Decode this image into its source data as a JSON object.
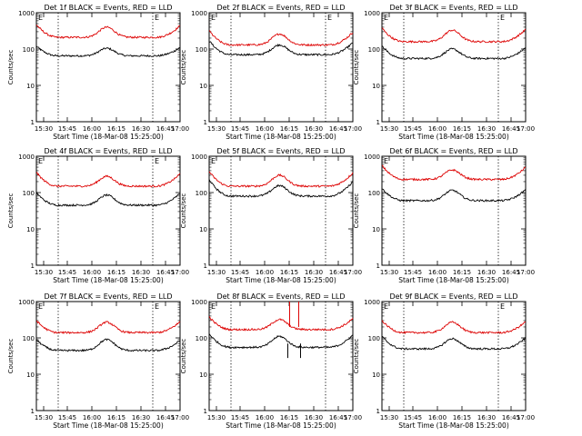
{
  "figure": {
    "ylabel": "Counts/sec",
    "xlabel": "Start Time (18-Mar-08 15:25:00)"
  },
  "chart_data": [
    {
      "type": "line",
      "title": "Det 1f BLACK = Events, RED = LLD",
      "xlabel": "Start Time (18-Mar-08 15:25:00)",
      "ylabel": "Counts/sec",
      "y_scale": "log",
      "ylim": [
        1,
        1000
      ],
      "x_ticks": [
        "15:30",
        "15:45",
        "16:00",
        "16:15",
        "16:30",
        "16:45",
        "17:00"
      ],
      "y_ticks": [
        "1",
        "10",
        "100",
        "1000"
      ],
      "markers": [
        "E",
        "E"
      ],
      "series": [
        {
          "name": "Events",
          "color": "#000000",
          "base": 65,
          "peak": 105,
          "start": 120,
          "end": 110
        },
        {
          "name": "LLD",
          "color": "#dd0000",
          "base": 210,
          "peak": 400,
          "start": 470,
          "end": 440
        }
      ]
    },
    {
      "type": "line",
      "title": "Det 2f BLACK = Events, RED = LLD",
      "xlabel": "Start Time (18-Mar-08 15:25:00)",
      "ylabel": "Counts/sec",
      "y_scale": "log",
      "ylim": [
        1,
        1000
      ],
      "x_ticks": [
        "15:30",
        "15:45",
        "16:00",
        "16:15",
        "16:30",
        "16:45",
        "17:00"
      ],
      "y_ticks": [
        "1",
        "10",
        "100",
        "1000"
      ],
      "markers": [
        "E",
        "E"
      ],
      "series": [
        {
          "name": "Events",
          "color": "#000000",
          "base": 70,
          "peak": 130,
          "start": 170,
          "end": 150
        },
        {
          "name": "LLD",
          "color": "#dd0000",
          "base": 130,
          "peak": 260,
          "start": 320,
          "end": 290
        }
      ]
    },
    {
      "type": "line",
      "title": "Det 3f BLACK = Events, RED = LLD",
      "xlabel": "Start Time (18-Mar-08 15:25:00)",
      "ylabel": "Counts/sec",
      "y_scale": "log",
      "ylim": [
        1,
        1000
      ],
      "x_ticks": [
        "15:30",
        "15:45",
        "16:00",
        "16:15",
        "16:30",
        "16:45",
        "17:00"
      ],
      "y_ticks": [
        "1",
        "10",
        "100",
        "1000"
      ],
      "markers": [
        "E",
        "E"
      ],
      "series": [
        {
          "name": "Events",
          "color": "#000000",
          "base": 55,
          "peak": 100,
          "start": 120,
          "end": 110
        },
        {
          "name": "LLD",
          "color": "#dd0000",
          "base": 160,
          "peak": 330,
          "start": 380,
          "end": 350
        }
      ]
    },
    {
      "type": "line",
      "title": "Det 4f BLACK = Events, RED = LLD",
      "xlabel": "Start Time (18-Mar-08 15:25:00)",
      "ylabel": "Counts/sec",
      "y_scale": "log",
      "ylim": [
        1,
        1000
      ],
      "x_ticks": [
        "15:30",
        "15:45",
        "16:00",
        "16:15",
        "16:30",
        "16:45",
        "17:00"
      ],
      "y_ticks": [
        "1",
        "10",
        "100",
        "1000"
      ],
      "markers": [
        "E",
        "E"
      ],
      "series": [
        {
          "name": "Events",
          "color": "#000000",
          "base": 45,
          "peak": 85,
          "start": 100,
          "end": 95
        },
        {
          "name": "LLD",
          "color": "#dd0000",
          "base": 150,
          "peak": 280,
          "start": 360,
          "end": 330
        }
      ]
    },
    {
      "type": "line",
      "title": "Det 5f BLACK = Events, RED = LLD",
      "xlabel": "Start Time (18-Mar-08 15:25:00)",
      "ylabel": "Counts/sec",
      "y_scale": "log",
      "ylim": [
        1,
        1000
      ],
      "x_ticks": [
        "15:30",
        "15:45",
        "16:00",
        "16:15",
        "16:30",
        "16:45",
        "17:00"
      ],
      "y_ticks": [
        "1",
        "10",
        "100",
        "1000"
      ],
      "markers": [
        "E"
      ],
      "series": [
        {
          "name": "Events",
          "color": "#000000",
          "base": 80,
          "peak": 155,
          "start": 230,
          "end": 200
        },
        {
          "name": "LLD",
          "color": "#dd0000",
          "base": 150,
          "peak": 300,
          "start": 380,
          "end": 350
        }
      ]
    },
    {
      "type": "line",
      "title": "Det 6f BLACK = Events, RED = LLD",
      "xlabel": "Start Time (18-Mar-08 15:25:00)",
      "ylabel": "Counts/sec",
      "y_scale": "log",
      "ylim": [
        1,
        1000
      ],
      "x_ticks": [
        "15:30",
        "15:45",
        "16:00",
        "16:15",
        "16:30",
        "16:45",
        "17:00"
      ],
      "y_ticks": [
        "1",
        "10",
        "100",
        "1000"
      ],
      "markers": [
        "E"
      ],
      "series": [
        {
          "name": "Events",
          "color": "#000000",
          "base": 60,
          "peak": 115,
          "start": 130,
          "end": 120
        },
        {
          "name": "LLD",
          "color": "#dd0000",
          "base": 230,
          "peak": 420,
          "start": 560,
          "end": 500
        }
      ]
    },
    {
      "type": "line",
      "title": "Det 7f BLACK = Events, RED = LLD",
      "xlabel": "Start Time (18-Mar-08 15:25:00)",
      "ylabel": "Counts/sec",
      "y_scale": "log",
      "ylim": [
        1,
        1000
      ],
      "x_ticks": [
        "15:30",
        "15:45",
        "16:00",
        "16:15",
        "16:30",
        "16:45",
        "17:00"
      ],
      "y_ticks": [
        "1",
        "10",
        "100",
        "1000"
      ],
      "markers": [
        "E",
        "E"
      ],
      "series": [
        {
          "name": "Events",
          "color": "#000000",
          "base": 45,
          "peak": 90,
          "start": 90,
          "end": 85
        },
        {
          "name": "LLD",
          "color": "#dd0000",
          "base": 140,
          "peak": 270,
          "start": 300,
          "end": 280
        }
      ]
    },
    {
      "type": "line",
      "title": "Det 8f BLACK = Events, RED = LLD",
      "xlabel": "Start Time (18-Mar-08 15:25:00)",
      "ylabel": "Counts/sec",
      "y_scale": "log",
      "ylim": [
        1,
        1000
      ],
      "x_ticks": [
        "15:30",
        "15:45",
        "16:00",
        "16:15",
        "16:30",
        "16:45",
        "17:00"
      ],
      "y_ticks": [
        "1",
        "10",
        "100",
        "1000"
      ],
      "markers": [
        "E"
      ],
      "series": [
        {
          "name": "Events",
          "color": "#000000",
          "base": 55,
          "peak": 110,
          "start": 130,
          "end": 120
        },
        {
          "name": "LLD",
          "color": "#dd0000",
          "base": 170,
          "peak": 320,
          "start": 380,
          "end": 340
        }
      ]
    },
    {
      "type": "line",
      "title": "Det 9f BLACK = Events, RED = LLD",
      "xlabel": "Start Time (18-Mar-08 15:25:00)",
      "ylabel": "Counts/sec",
      "y_scale": "log",
      "ylim": [
        1,
        1000
      ],
      "x_ticks": [
        "15:30",
        "15:45",
        "16:00",
        "16:15",
        "16:30",
        "16:45",
        "17:00"
      ],
      "y_ticks": [
        "1",
        "10",
        "100",
        "1000"
      ],
      "markers": [
        "E",
        "E"
      ],
      "series": [
        {
          "name": "Events",
          "color": "#000000",
          "base": 50,
          "peak": 95,
          "start": 110,
          "end": 100
        },
        {
          "name": "LLD",
          "color": "#dd0000",
          "base": 140,
          "peak": 270,
          "start": 300,
          "end": 280
        }
      ]
    }
  ]
}
